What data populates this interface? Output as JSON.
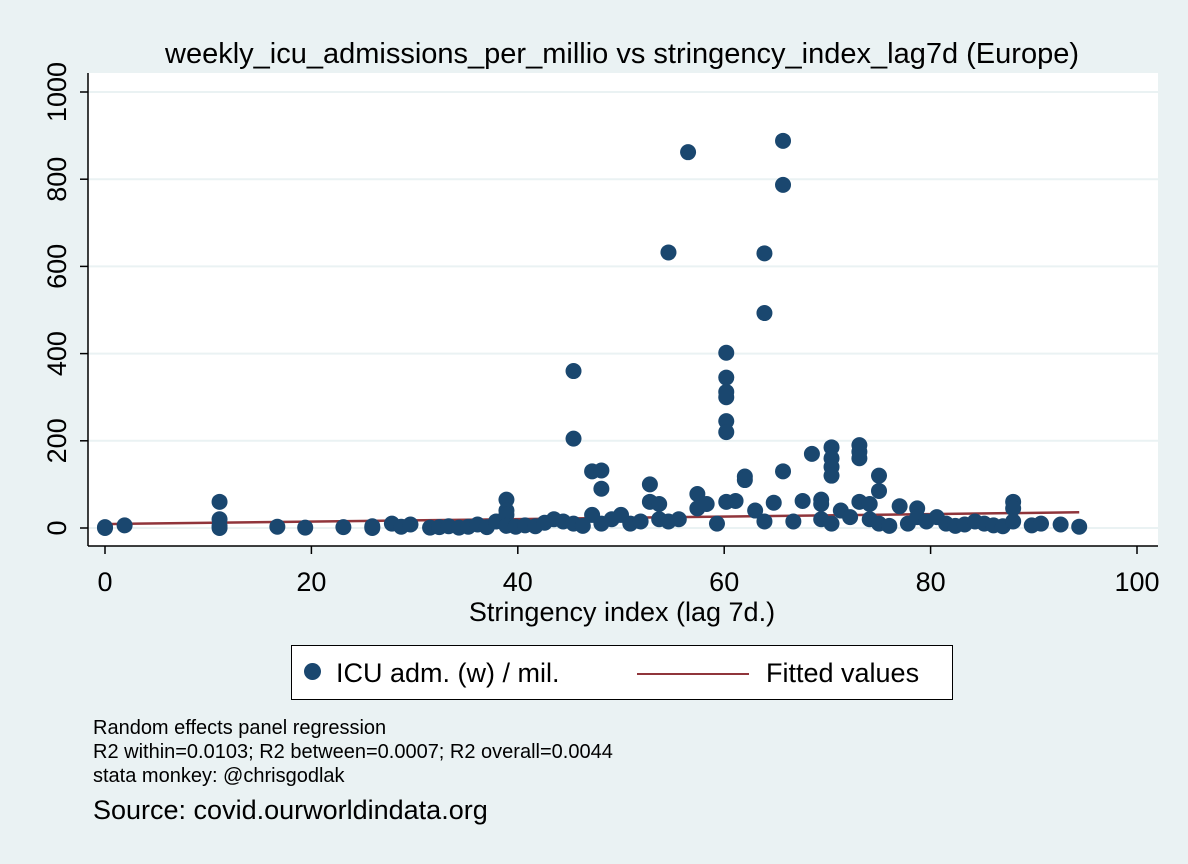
{
  "chart_data": {
    "type": "scatter",
    "title": "weekly_icu_admissions_per_millio vs stringency_index_lag7d (Europe)",
    "xlabel": "Stringency index (lag 7d.)",
    "ylabel": "",
    "xlim": [
      0,
      100
    ],
    "ylim": [
      0,
      1000
    ],
    "xticks": [
      0,
      20,
      40,
      60,
      80,
      100
    ],
    "yticks": [
      0,
      200,
      400,
      600,
      800,
      1000
    ],
    "grid": "horizontal",
    "legend_position": "bottom",
    "colors": {
      "points": "#1a476f",
      "fit": "#90353b",
      "background": "#eaf2f3",
      "plot_bg": "#ffffff"
    },
    "series": [
      {
        "name": "ICU adm. (w) / mil.",
        "kind": "scatter",
        "points": [
          [
            0,
            2
          ],
          [
            0,
            0
          ],
          [
            1.9,
            6
          ],
          [
            11.1,
            60
          ],
          [
            11.1,
            20
          ],
          [
            11.1,
            5
          ],
          [
            11.1,
            0
          ],
          [
            16.7,
            3
          ],
          [
            19.4,
            1
          ],
          [
            23.1,
            2
          ],
          [
            25.9,
            4
          ],
          [
            25.9,
            0
          ],
          [
            27.8,
            10
          ],
          [
            28.7,
            3
          ],
          [
            29.6,
            8
          ],
          [
            31.5,
            1
          ],
          [
            32.4,
            2
          ],
          [
            33.3,
            4
          ],
          [
            34.3,
            1
          ],
          [
            35.2,
            3
          ],
          [
            36.1,
            8
          ],
          [
            37,
            2
          ],
          [
            37.9,
            15
          ],
          [
            38.9,
            65
          ],
          [
            38.9,
            40
          ],
          [
            38.9,
            30
          ],
          [
            38.9,
            5
          ],
          [
            39.8,
            3
          ],
          [
            40.7,
            6
          ],
          [
            41.7,
            4
          ],
          [
            42.6,
            12
          ],
          [
            43.5,
            20
          ],
          [
            44.4,
            15
          ],
          [
            45.4,
            360
          ],
          [
            45.4,
            205
          ],
          [
            45.4,
            10
          ],
          [
            46.3,
            5
          ],
          [
            47.2,
            130
          ],
          [
            47.2,
            30
          ],
          [
            48.1,
            132
          ],
          [
            48.1,
            90
          ],
          [
            48.1,
            10
          ],
          [
            49.1,
            20
          ],
          [
            50,
            30
          ],
          [
            50.9,
            10
          ],
          [
            51.9,
            15
          ],
          [
            52.8,
            100
          ],
          [
            52.8,
            60
          ],
          [
            53.7,
            55
          ],
          [
            53.7,
            20
          ],
          [
            54.6,
            632
          ],
          [
            54.6,
            15
          ],
          [
            55.6,
            20
          ],
          [
            56.5,
            862
          ],
          [
            57.4,
            78
          ],
          [
            57.4,
            45
          ],
          [
            58.3,
            55
          ],
          [
            59.3,
            10
          ],
          [
            60.2,
            402
          ],
          [
            60.2,
            345
          ],
          [
            60.2,
            312
          ],
          [
            60.2,
            300
          ],
          [
            60.2,
            245
          ],
          [
            60.2,
            220
          ],
          [
            60.2,
            60
          ],
          [
            61.1,
            62
          ],
          [
            62,
            118
          ],
          [
            62,
            110
          ],
          [
            63,
            40
          ],
          [
            63.9,
            630
          ],
          [
            63.9,
            493
          ],
          [
            63.9,
            15
          ],
          [
            64.8,
            58
          ],
          [
            65.7,
            888
          ],
          [
            65.7,
            787
          ],
          [
            65.7,
            130
          ],
          [
            66.7,
            15
          ],
          [
            67.6,
            62
          ],
          [
            68.5,
            170
          ],
          [
            69.4,
            65
          ],
          [
            69.4,
            55
          ],
          [
            69.4,
            20
          ],
          [
            70.4,
            185
          ],
          [
            70.4,
            160
          ],
          [
            70.4,
            140
          ],
          [
            70.4,
            120
          ],
          [
            70.4,
            10
          ],
          [
            71.3,
            40
          ],
          [
            72.2,
            25
          ],
          [
            73.1,
            190
          ],
          [
            73.1,
            175
          ],
          [
            73.1,
            160
          ],
          [
            73.1,
            60
          ],
          [
            74.1,
            55
          ],
          [
            74.1,
            20
          ],
          [
            75,
            120
          ],
          [
            75,
            85
          ],
          [
            75,
            10
          ],
          [
            76,
            5
          ],
          [
            77,
            50
          ],
          [
            77.8,
            10
          ],
          [
            78.7,
            45
          ],
          [
            78.7,
            25
          ],
          [
            79.6,
            15
          ],
          [
            80.6,
            25
          ],
          [
            81.5,
            10
          ],
          [
            82.4,
            5
          ],
          [
            83.3,
            8
          ],
          [
            84.3,
            15
          ],
          [
            85.2,
            10
          ],
          [
            86.1,
            6
          ],
          [
            87,
            4
          ],
          [
            88,
            60
          ],
          [
            88,
            45
          ],
          [
            88,
            15
          ],
          [
            89.8,
            6
          ],
          [
            90.7,
            10
          ],
          [
            92.6,
            8
          ],
          [
            94.4,
            3
          ]
        ]
      },
      {
        "name": "Fitted values",
        "kind": "line",
        "points": [
          [
            0,
            9
          ],
          [
            94.4,
            36
          ]
        ]
      }
    ],
    "notes": [
      "Random effects panel regression",
      "R2 within=0.0103; R2 between=0.0007; R2 overall=0.0044",
      "stata monkey: @chrisgodlak"
    ],
    "source": "Source: covid.ourworldindata.org"
  }
}
